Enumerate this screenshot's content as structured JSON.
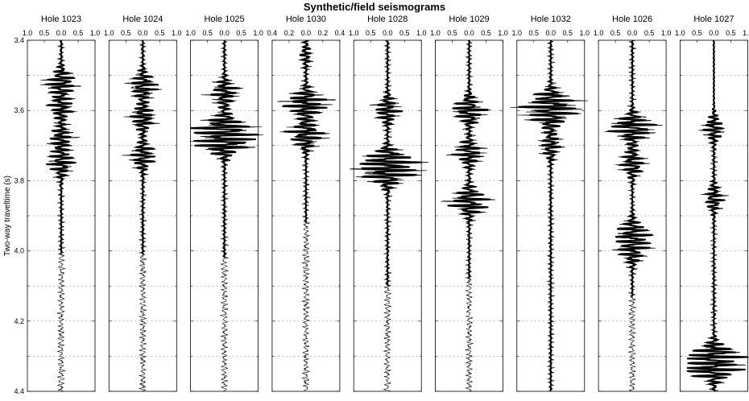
{
  "chart_data": {
    "type": "line",
    "title": "Synthetic/field seismograms",
    "ylabel": "Two-way traveltime (s)",
    "ylim": [
      3.4,
      4.4
    ],
    "y_ticks": [
      "3.4",
      "3.6",
      "3.8",
      "4.0",
      "4.2",
      "4.4"
    ],
    "grid": "dashed horizontal gridlines every 0.1 s",
    "legend": "none",
    "series_styles": {
      "synthetic": "thin line",
      "field": "thick line"
    },
    "panels": [
      {
        "title": "Hole 1023",
        "x_ticks": [
          "1.0",
          "0.5",
          "0.0",
          "0.5",
          "1.0"
        ],
        "xlim": [
          -1,
          1
        ],
        "synthetic_range": [
          3.4,
          4.4
        ],
        "field_range": [
          3.4,
          4.01
        ],
        "events": [
          {
            "t": 3.52,
            "a": 0.45
          },
          {
            "t": 3.59,
            "a": 0.35
          },
          {
            "t": 3.68,
            "a": 0.35
          },
          {
            "t": 3.75,
            "a": 0.4
          }
        ]
      },
      {
        "title": "Hole 1024",
        "x_ticks": [
          "1.0",
          "0.5",
          "0.0",
          "0.5",
          "1.0"
        ],
        "xlim": [
          -1,
          1
        ],
        "synthetic_range": [
          3.4,
          4.4
        ],
        "field_range": [
          3.4,
          4.01
        ],
        "events": [
          {
            "t": 3.53,
            "a": 0.45
          },
          {
            "t": 3.62,
            "a": 0.4
          },
          {
            "t": 3.73,
            "a": 0.4
          }
        ]
      },
      {
        "title": "Hole 1025",
        "x_ticks": [
          "1.0",
          "0.5",
          "0.0",
          "0.5",
          "1.0"
        ],
        "xlim": [
          -1,
          1
        ],
        "synthetic_range": [
          3.4,
          4.4
        ],
        "field_range": [
          3.4,
          4.02
        ],
        "events": [
          {
            "t": 3.55,
            "a": 0.45
          },
          {
            "t": 3.65,
            "a": 0.75
          },
          {
            "t": 3.69,
            "a": 0.9
          }
        ]
      },
      {
        "title": "Hole 1030",
        "x_ticks": [
          "0.4",
          "0.2",
          "0.0",
          "0.2",
          "0.4"
        ],
        "xlim": [
          -0.4,
          0.4
        ],
        "synthetic_range": [
          3.4,
          4.4
        ],
        "field_range": [
          3.4,
          3.92
        ],
        "events": [
          {
            "t": 3.44,
            "a": 0.06
          },
          {
            "t": 3.58,
            "a": 0.3
          },
          {
            "t": 3.67,
            "a": 0.25
          }
        ]
      },
      {
        "title": "Hole 1028",
        "x_ticks": [
          "1.0",
          "0.5",
          "0.0",
          "0.5",
          "1.0"
        ],
        "xlim": [
          -1,
          1
        ],
        "synthetic_range": [
          3.4,
          4.4
        ],
        "field_range": [
          3.4,
          4.1
        ],
        "events": [
          {
            "t": 3.6,
            "a": 0.4
          },
          {
            "t": 3.75,
            "a": 0.9
          },
          {
            "t": 3.78,
            "a": 0.6
          }
        ]
      },
      {
        "title": "Hole 1029",
        "x_ticks": [
          "1.0",
          "0.5",
          "0.0",
          "0.5",
          "1.0"
        ],
        "xlim": [
          -1,
          1
        ],
        "synthetic_range": [
          3.4,
          4.4
        ],
        "field_range": [
          3.4,
          4.08
        ],
        "events": [
          {
            "t": 3.6,
            "a": 0.55
          },
          {
            "t": 3.72,
            "a": 0.45
          },
          {
            "t": 3.86,
            "a": 0.65
          }
        ]
      },
      {
        "title": "Hole 1032",
        "x_ticks": [
          "1.0",
          "0.5",
          "0.0",
          "0.5",
          "1.0"
        ],
        "xlim": [
          -1,
          1
        ],
        "synthetic_range": [
          3.4,
          4.4
        ],
        "field_range": [
          3.4,
          4.4
        ],
        "events": [
          {
            "t": 3.58,
            "a": 0.75
          },
          {
            "t": 3.62,
            "a": 0.45
          },
          {
            "t": 3.7,
            "a": 0.3
          }
        ]
      },
      {
        "title": "Hole 1026",
        "x_ticks": [
          "1.0",
          "0.5",
          "0.0",
          "0.5",
          "1.0"
        ],
        "xlim": [
          -1,
          1
        ],
        "synthetic_range": [
          3.4,
          4.4
        ],
        "field_range": [
          3.4,
          4.13
        ],
        "events": [
          {
            "t": 3.65,
            "a": 0.75
          },
          {
            "t": 3.75,
            "a": 0.4
          },
          {
            "t": 3.95,
            "a": 0.5
          },
          {
            "t": 4.0,
            "a": 0.4
          }
        ]
      },
      {
        "title": "Hole 1027",
        "x_ticks": [
          "1.0",
          "0.5",
          "0.0",
          "0.5",
          "1.0"
        ],
        "xlim": [
          -1,
          1
        ],
        "synthetic_range": [
          3.64,
          4.4
        ],
        "field_range": [
          3.4,
          4.4
        ],
        "events": [
          {
            "t": 3.65,
            "a": 0.3
          },
          {
            "t": 3.85,
            "a": 0.3
          },
          {
            "t": 4.3,
            "a": 0.7
          },
          {
            "t": 4.33,
            "a": 0.9
          }
        ]
      }
    ]
  }
}
